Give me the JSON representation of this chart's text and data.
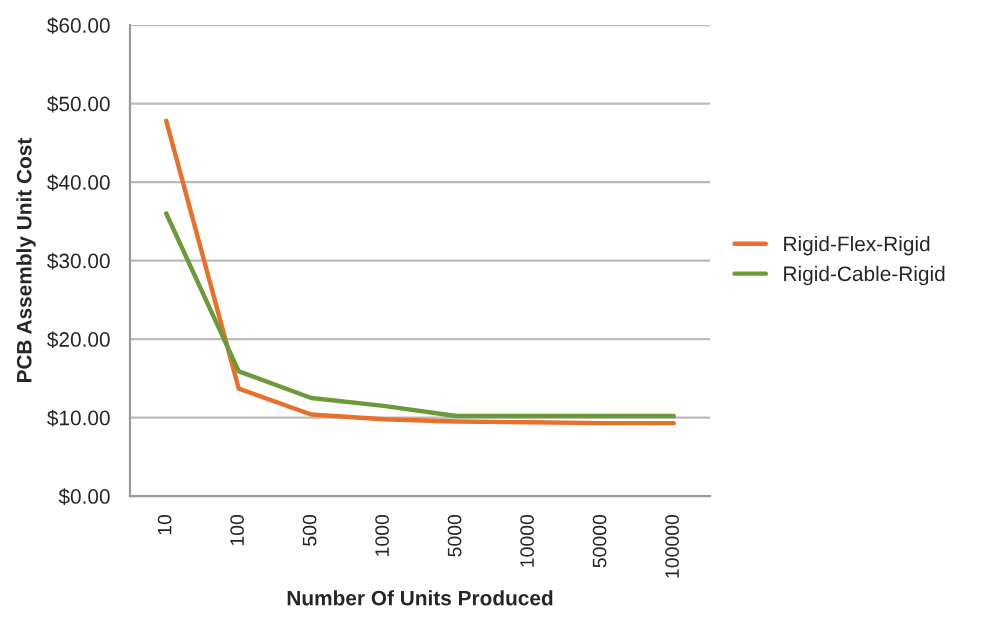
{
  "chart_data": {
    "type": "line",
    "xlabel": "Number Of Units Produced",
    "ylabel": "PCB Assembly Unit Cost",
    "categories": [
      "10",
      "100",
      "500",
      "1000",
      "5000",
      "10000",
      "50000",
      "100000"
    ],
    "series": [
      {
        "name": "Rigid-Flex-Rigid",
        "color": "#e8702a",
        "values": [
          47.8,
          13.7,
          10.4,
          9.8,
          9.5,
          9.4,
          9.3,
          9.3
        ]
      },
      {
        "name": "Rigid-Cable-Rigid",
        "color": "#6b9a3a",
        "values": [
          36,
          15.9,
          12.5,
          11.5,
          10.2,
          10.2,
          10.2,
          10.2
        ]
      }
    ],
    "ylim": [
      0,
      60
    ],
    "yticks": [
      {
        "value": 0,
        "label": "$0.00"
      },
      {
        "value": 10,
        "label": "$10.00"
      },
      {
        "value": 20,
        "label": "$20.00"
      },
      {
        "value": 30,
        "label": "$30.00"
      },
      {
        "value": 40,
        "label": "$40.00"
      },
      {
        "value": 50,
        "label": "$50.00"
      },
      {
        "value": 60,
        "label": "$60.00"
      }
    ],
    "grid": "y",
    "legend": "right",
    "marker": "none",
    "line_style": "solid"
  }
}
